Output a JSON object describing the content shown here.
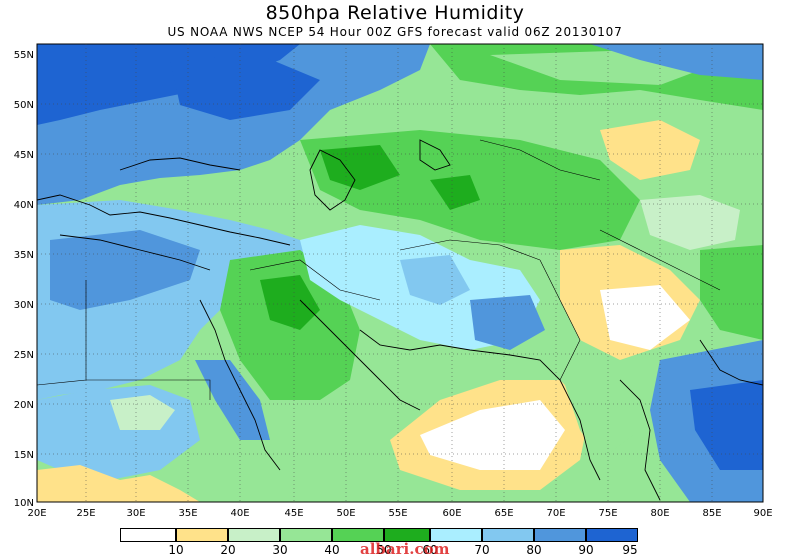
{
  "title": "850hpa Relative Humidity",
  "subtitle": "US NOAA NWS NCEP 54 Hour 00Z GFS forecast valid 06Z 20130107",
  "watermark": "albari.com",
  "axes": {
    "lon_ticks": [
      "20E",
      "25E",
      "30E",
      "35E",
      "40E",
      "45E",
      "50E",
      "55E",
      "60E",
      "65E",
      "70E",
      "75E",
      "80E",
      "85E",
      "90E"
    ],
    "lat_ticks": [
      "55N",
      "50N",
      "45N",
      "40N",
      "35N",
      "30N",
      "25N",
      "20N",
      "15N",
      "10N"
    ]
  },
  "legend": {
    "thresholds": [
      "10",
      "20",
      "30",
      "40",
      "50",
      "60",
      "70",
      "80",
      "90",
      "95"
    ],
    "colors": [
      "#ffffff",
      "#ffe28a",
      "#c8f0c8",
      "#96e696",
      "#55d255",
      "#1ead1e",
      "#aaeeff",
      "#82c8f0",
      "#5096dc",
      "#1e64d2"
    ]
  },
  "colors": {
    "land_dry": "#ffe28a",
    "ocean_moist": "#5096dc",
    "deep_moist": "#1e64d2"
  }
}
